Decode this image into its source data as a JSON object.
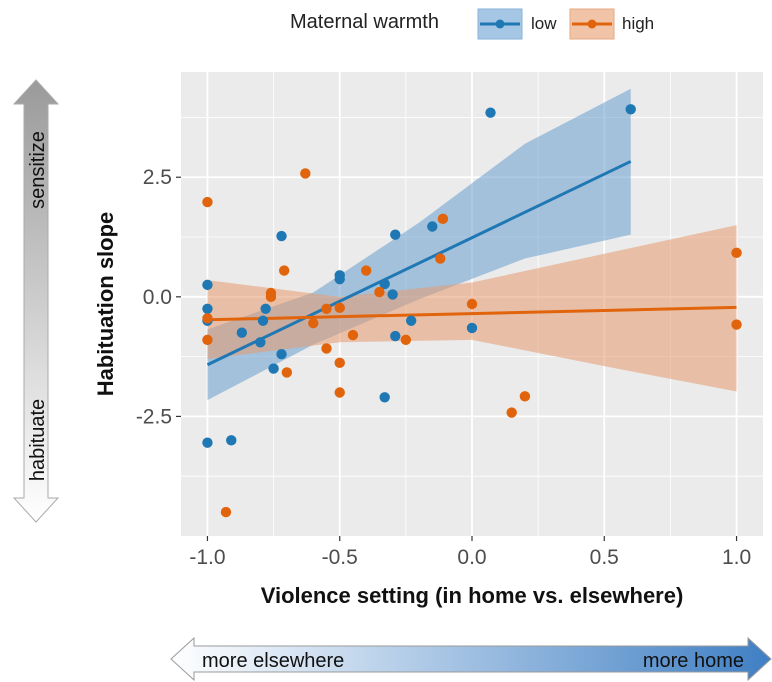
{
  "chart_data": {
    "type": "scatter",
    "xlabel": "Violence setting (in home vs. elsewhere)",
    "ylabel": "Habituation slope",
    "xlim": [
      -1.1,
      1.1
    ],
    "ylim": [
      -5.0,
      4.7
    ],
    "x_ticks": [
      -1.0,
      -0.5,
      0.0,
      0.5,
      1.0
    ],
    "x_tick_labels": [
      "-1.0",
      "-0.5",
      "0.0",
      "0.5",
      "1.0"
    ],
    "y_ticks": [
      -2.5,
      0.0,
      2.5
    ],
    "y_tick_labels": [
      "-2.5",
      "0.0",
      "2.5"
    ],
    "grid": true,
    "legend": {
      "title": "Maternal warmth",
      "placement": "top",
      "entries": [
        "low",
        "high"
      ]
    },
    "series": [
      {
        "name": "low",
        "color": "#1f78b4",
        "band_color": "#6a9fd0",
        "points": [
          [
            -1.0,
            0.25
          ],
          [
            -1.0,
            -0.25
          ],
          [
            -1.0,
            -0.5
          ],
          [
            -1.0,
            -3.05
          ],
          [
            -0.91,
            -3.0
          ],
          [
            -0.87,
            -0.75
          ],
          [
            -0.8,
            -0.95
          ],
          [
            -0.79,
            -0.5
          ],
          [
            -0.78,
            -0.25
          ],
          [
            -0.75,
            -1.5
          ],
          [
            -0.72,
            1.27
          ],
          [
            -0.72,
            -1.2
          ],
          [
            -0.5,
            0.45
          ],
          [
            -0.5,
            0.37
          ],
          [
            -0.33,
            0.27
          ],
          [
            -0.33,
            -2.1
          ],
          [
            -0.3,
            0.05
          ],
          [
            -0.29,
            1.3
          ],
          [
            -0.29,
            -0.82
          ],
          [
            -0.23,
            -0.5
          ],
          [
            -0.15,
            1.47
          ],
          [
            0.0,
            -0.65
          ],
          [
            0.07,
            3.85
          ],
          [
            0.6,
            3.92
          ]
        ],
        "fit": {
          "x": [
            -1.0,
            0.6
          ],
          "y": [
            -1.42,
            2.83
          ]
        },
        "ci_upper": [
          [
            -1.0,
            -0.68
          ],
          [
            -0.6,
            0.09
          ],
          [
            -0.2,
            1.55
          ],
          [
            0.2,
            3.2
          ],
          [
            0.6,
            4.35
          ]
        ],
        "ci_lower": [
          [
            -1.0,
            -2.16
          ],
          [
            -0.6,
            -1.0
          ],
          [
            -0.2,
            -0.05
          ],
          [
            0.2,
            0.8
          ],
          [
            0.6,
            1.3
          ]
        ]
      },
      {
        "name": "high",
        "color": "#e1640c",
        "band_color": "#e59a6e",
        "points": [
          [
            -1.0,
            1.98
          ],
          [
            -1.0,
            -0.45
          ],
          [
            -1.0,
            -0.9
          ],
          [
            -0.93,
            -4.5
          ],
          [
            -0.76,
            0.08
          ],
          [
            -0.76,
            0.0
          ],
          [
            -0.71,
            0.55
          ],
          [
            -0.7,
            -1.58
          ],
          [
            -0.63,
            2.58
          ],
          [
            -0.6,
            -0.55
          ],
          [
            -0.55,
            -0.25
          ],
          [
            -0.55,
            -1.08
          ],
          [
            -0.5,
            -0.23
          ],
          [
            -0.5,
            -1.38
          ],
          [
            -0.5,
            -2.0
          ],
          [
            -0.45,
            -0.8
          ],
          [
            -0.4,
            0.55
          ],
          [
            -0.35,
            0.1
          ],
          [
            -0.25,
            -0.9
          ],
          [
            -0.12,
            0.8
          ],
          [
            -0.11,
            1.63
          ],
          [
            0.0,
            -0.15
          ],
          [
            0.15,
            -2.42
          ],
          [
            0.2,
            -2.08
          ],
          [
            1.0,
            0.92
          ],
          [
            1.0,
            -0.58
          ]
        ],
        "fit": {
          "x": [
            -1.0,
            1.0
          ],
          "y": [
            -0.48,
            -0.22
          ]
        },
        "ci_upper": [
          [
            -1.0,
            0.35
          ],
          [
            -0.5,
            0.0
          ],
          [
            0.0,
            0.3
          ],
          [
            0.5,
            0.9
          ],
          [
            1.0,
            1.5
          ]
        ],
        "ci_lower": [
          [
            -1.0,
            -1.3
          ],
          [
            -0.5,
            -0.95
          ],
          [
            0.0,
            -0.9
          ],
          [
            0.5,
            -1.45
          ],
          [
            1.0,
            -1.98
          ]
        ]
      }
    ]
  },
  "side_arrow": {
    "top_label": "sensitize",
    "bottom_label": "habituate"
  },
  "bottom_arrow": {
    "left_label": "more elsewhere",
    "right_label": "more home"
  },
  "colors": {
    "panel": "#ebebeb",
    "grid": "#ffffff"
  }
}
